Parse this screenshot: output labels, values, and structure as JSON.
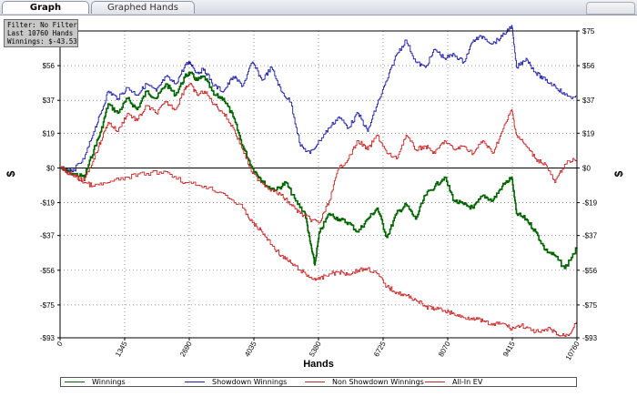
{
  "tabs": [
    {
      "label": "Graph",
      "active": true
    },
    {
      "label": "Graphed Hands",
      "active": false
    }
  ],
  "info_box": {
    "filter": "Filter: No Filter",
    "last": "Last  10760 Hands",
    "winnings": "Winnings: $-43.53"
  },
  "chart_data": {
    "type": "line",
    "xlabel": "Hands",
    "ylabel": "$",
    "xlim": [
      0,
      10760
    ],
    "ylim": [
      -93,
      75
    ],
    "x_ticks": [
      0,
      1345,
      2690,
      4035,
      5380,
      6725,
      8070,
      9415,
      10760
    ],
    "y_ticks": [
      75,
      56,
      37,
      19,
      0,
      -19,
      -37,
      -56,
      -75,
      -93
    ],
    "y_tick_labels": [
      "$75",
      "$56",
      "$37",
      "$19",
      "$0",
      "-$19",
      "-$37",
      "-$56",
      "-$75",
      "-$93"
    ],
    "grid": true,
    "legend_position": "bottom",
    "series": [
      {
        "name": "Winnings",
        "color": "#006400",
        "x": [
          0,
          250,
          500,
          700,
          850,
          1000,
          1200,
          1400,
          1600,
          1800,
          2000,
          2200,
          2400,
          2600,
          2700,
          2850,
          3000,
          3200,
          3400,
          3600,
          3800,
          4000,
          4150,
          4300,
          4500,
          4700,
          4900,
          5100,
          5200,
          5300,
          5400,
          5600,
          5800,
          6000,
          6200,
          6400,
          6600,
          6800,
          7000,
          7200,
          7400,
          7600,
          7800,
          8000,
          8200,
          8400,
          8600,
          8800,
          9000,
          9200,
          9400,
          9500,
          9700,
          9900,
          10100,
          10300,
          10500,
          10760
        ],
        "y": [
          0,
          -3,
          -5,
          10,
          20,
          35,
          30,
          38,
          32,
          42,
          38,
          46,
          40,
          50,
          52,
          48,
          50,
          40,
          38,
          28,
          12,
          0,
          -5,
          -10,
          -12,
          -8,
          -18,
          -25,
          -40,
          -53,
          -35,
          -25,
          -28,
          -30,
          -35,
          -28,
          -22,
          -38,
          -25,
          -20,
          -28,
          -15,
          -10,
          -5,
          -18,
          -20,
          -22,
          -15,
          -18,
          -10,
          -5,
          -25,
          -28,
          -35,
          -45,
          -48,
          -55,
          -43.53
        ]
      },
      {
        "name": "Showdown Winnings",
        "color": "#1c1ca8",
        "x": [
          0,
          250,
          500,
          700,
          850,
          1000,
          1200,
          1400,
          1600,
          1800,
          2000,
          2200,
          2400,
          2600,
          2700,
          2850,
          3000,
          3200,
          3400,
          3600,
          3800,
          4000,
          4200,
          4400,
          4600,
          4800,
          5000,
          5200,
          5400,
          5600,
          5800,
          6000,
          6200,
          6400,
          6600,
          6800,
          7000,
          7200,
          7400,
          7600,
          7800,
          8000,
          8200,
          8400,
          8600,
          8800,
          9000,
          9200,
          9400,
          9500,
          9700,
          9900,
          10100,
          10300,
          10500,
          10760
        ],
        "y": [
          0,
          -2,
          5,
          20,
          30,
          42,
          38,
          44,
          40,
          46,
          42,
          50,
          46,
          56,
          58,
          52,
          54,
          45,
          42,
          50,
          45,
          58,
          48,
          55,
          42,
          36,
          12,
          8,
          15,
          22,
          28,
          22,
          30,
          20,
          35,
          48,
          62,
          70,
          58,
          55,
          65,
          60,
          62,
          58,
          70,
          72,
          68,
          72,
          78,
          55,
          60,
          52,
          48,
          45,
          40,
          38
        ]
      },
      {
        "name": "Non Showdown Winnings",
        "color": "#c82828",
        "x": [
          0,
          250,
          500,
          700,
          850,
          1000,
          1200,
          1400,
          1600,
          1800,
          2000,
          2200,
          2400,
          2600,
          2700,
          2850,
          3000,
          3200,
          3400,
          3600,
          3800,
          4000,
          4200,
          4400,
          4600,
          4800,
          5000,
          5200,
          5400,
          5600,
          5800,
          6000,
          6200,
          6400,
          6600,
          6800,
          7000,
          7200,
          7400,
          7600,
          7800,
          8000,
          8200,
          8400,
          8600,
          8800,
          9000,
          9200,
          9400,
          9500,
          9700,
          9900,
          10100,
          10300,
          10500,
          10760
        ],
        "y": [
          0,
          -4,
          -7,
          5,
          15,
          25,
          20,
          30,
          26,
          34,
          30,
          36,
          32,
          44,
          46,
          40,
          42,
          35,
          30,
          22,
          10,
          -3,
          -8,
          -12,
          -15,
          -20,
          -25,
          -28,
          -30,
          -18,
          0,
          5,
          15,
          10,
          18,
          8,
          5,
          18,
          10,
          12,
          8,
          15,
          10,
          12,
          8,
          15,
          8,
          20,
          32,
          18,
          12,
          5,
          2,
          -8,
          2,
          5
        ]
      },
      {
        "name": "All-In EV",
        "color": "#c82828",
        "x": [
          0,
          250,
          500,
          700,
          1000,
          1400,
          1800,
          2200,
          2600,
          3000,
          3400,
          3800,
          4000,
          4200,
          4400,
          4600,
          4800,
          5000,
          5200,
          5400,
          5600,
          5800,
          6000,
          6200,
          6400,
          6600,
          6800,
          7000,
          7200,
          7400,
          7600,
          7800,
          8000,
          8200,
          8400,
          8600,
          8800,
          9000,
          9200,
          9400,
          9600,
          9800,
          10000,
          10200,
          10400,
          10600,
          10760
        ],
        "y": [
          0,
          -4,
          -8,
          -10,
          -8,
          -5,
          -3,
          -2,
          -8,
          -10,
          -14,
          -22,
          -30,
          -35,
          -42,
          -48,
          -52,
          -56,
          -60,
          -61,
          -58,
          -57,
          -58,
          -56,
          -55,
          -58,
          -65,
          -68,
          -70,
          -72,
          -76,
          -77,
          -78,
          -80,
          -82,
          -82,
          -84,
          -86,
          -85,
          -88,
          -86,
          -89,
          -90,
          -88,
          -92,
          -91,
          -83
        ]
      }
    ]
  },
  "legend": [
    {
      "label": "Winnings",
      "color": "#006400"
    },
    {
      "label": "Showdown Winnings",
      "color": "#1c1ca8"
    },
    {
      "label": "Non Showdown Winnings",
      "color": "#c82828"
    },
    {
      "label": "All-In EV",
      "color": "#c82828"
    }
  ]
}
